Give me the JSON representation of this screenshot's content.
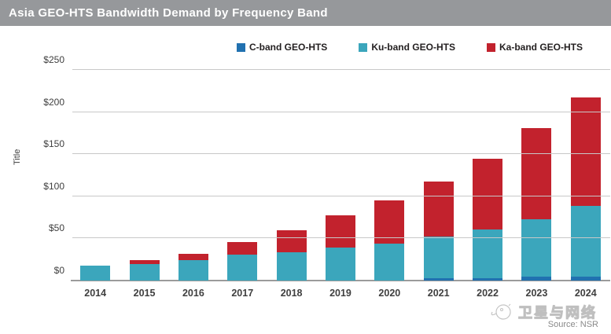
{
  "header": {
    "title": "Asia GEO-HTS Bandwidth Demand by Frequency Band"
  },
  "colors": {
    "header_bg": "#96989b",
    "cband": "#2171b0",
    "kuband": "#3ba6bc",
    "kaband": "#c2222d",
    "grid": "#c8c8c8",
    "baseline": "#9b9b9b",
    "text": "#3f3f3f"
  },
  "chart_data": {
    "type": "bar",
    "stacked": true,
    "title": "Asia GEO-HTS Bandwidth Demand by Frequency Band",
    "ylabel": "Title",
    "ylim": [
      0,
      250
    ],
    "yticks": [
      "$0",
      "$50",
      "$100",
      "$150",
      "$200",
      "$250"
    ],
    "ytick_values": [
      0,
      50,
      100,
      150,
      200,
      250
    ],
    "grid": true,
    "legend_position": "top-right",
    "categories": [
      "2014",
      "2015",
      "2016",
      "2017",
      "2018",
      "2019",
      "2020",
      "2021",
      "2022",
      "2023",
      "2024"
    ],
    "series": [
      {
        "name": "C-band GEO-HTS",
        "color": "#2171b0",
        "values": [
          0,
          0,
          0,
          0,
          0,
          0,
          0,
          3,
          3,
          5,
          5
        ]
      },
      {
        "name": "Ku-band GEO-HTS",
        "color": "#3ba6bc",
        "values": [
          18,
          20,
          24,
          31,
          34,
          39,
          44,
          49,
          58,
          68,
          84
        ]
      },
      {
        "name": "Ka-band GEO-HTS",
        "color": "#c2222d",
        "values": [
          0,
          4,
          8,
          15,
          26,
          38,
          51,
          66,
          84,
          108,
          128
        ]
      }
    ],
    "totals": [
      18,
      24,
      32,
      46,
      60,
      77,
      95,
      118,
      145,
      181,
      217
    ]
  },
  "footer": {
    "watermark": "卫星与网络",
    "source": "Source: NSR"
  }
}
